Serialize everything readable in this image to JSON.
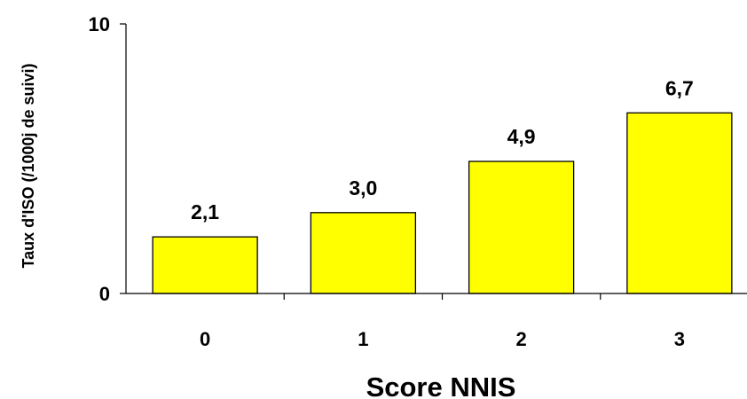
{
  "chart_data": {
    "type": "bar",
    "categories": [
      "0",
      "1",
      "2",
      "3"
    ],
    "values": [
      2.1,
      3.0,
      4.9,
      6.7
    ],
    "value_labels": [
      "2,1",
      "3,0",
      "4,9",
      "6,7"
    ],
    "xlabel": "Score NNIS",
    "ylabel": "Taux d'ISO (/1000j de suivi)",
    "ylim": [
      0,
      10
    ],
    "y_ticks": [
      0,
      10
    ],
    "y_tick_labels": [
      "0",
      "10"
    ],
    "grid": false,
    "legend": "none",
    "colors": {
      "bar_fill": "#FFFF00",
      "bar_stroke": "#000000"
    }
  }
}
